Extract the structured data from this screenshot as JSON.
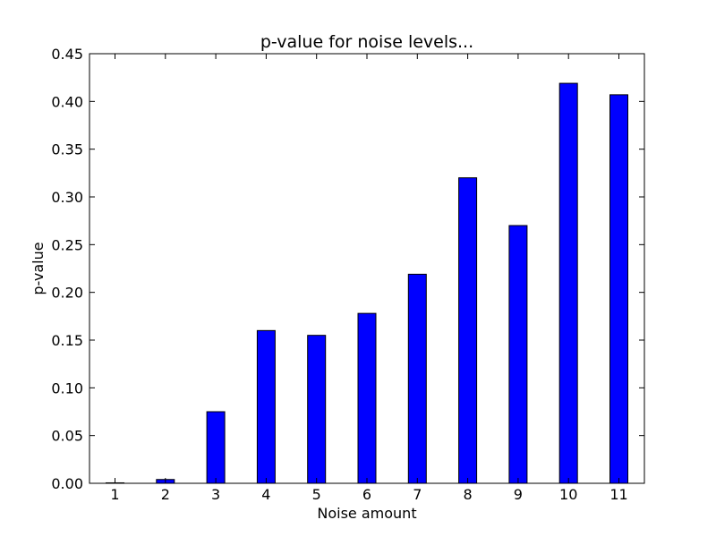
{
  "chart_data": {
    "type": "bar",
    "title": "p-value for noise levels...",
    "xlabel": "Noise amount",
    "ylabel": "p-value",
    "categories": [
      "1",
      "2",
      "3",
      "4",
      "5",
      "6",
      "7",
      "8",
      "9",
      "10",
      "11"
    ],
    "values": [
      0.0005,
      0.004,
      0.075,
      0.16,
      0.155,
      0.178,
      0.219,
      0.32,
      0.27,
      0.419,
      0.407
    ],
    "ylim": [
      0,
      0.45
    ],
    "yticks": [
      "0.00",
      "0.05",
      "0.10",
      "0.15",
      "0.20",
      "0.25",
      "0.30",
      "0.35",
      "0.40",
      "0.45"
    ],
    "bar_color": "#0000ff",
    "edge_color": "#000000",
    "grid": false
  }
}
